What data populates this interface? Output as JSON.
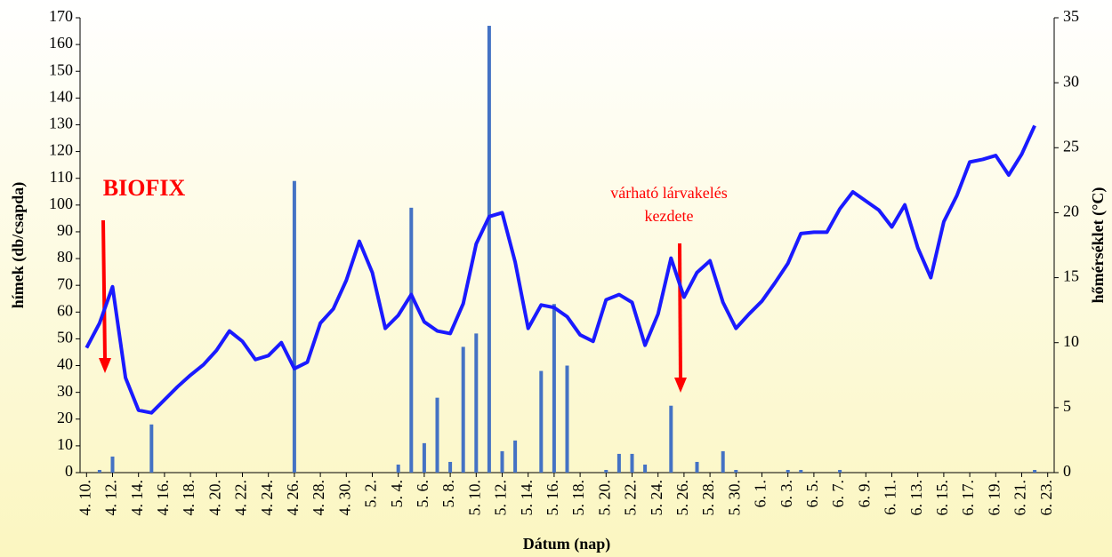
{
  "chart_data": {
    "type": "bar_line",
    "xlabel": "Dátum (nap)",
    "ylabel": "hímek (db/csapda)",
    "y2label": "hőmérséklet (°C)",
    "categories": [
      "4. 10.",
      null,
      "4. 12.",
      null,
      "4. 14.",
      null,
      "4. 16.",
      null,
      "4. 18.",
      null,
      "4. 20.",
      null,
      "4. 22.",
      null,
      "4. 24.",
      null,
      "4. 26.",
      null,
      "4. 28.",
      null,
      "4. 30.",
      null,
      "5. 2.",
      null,
      "5. 4.",
      null,
      "5. 6.",
      null,
      "5. 8.",
      null,
      "5. 10.",
      null,
      "5. 12.",
      null,
      "5. 14.",
      null,
      "5. 16.",
      null,
      "5. 18.",
      null,
      "5. 20.",
      null,
      "5. 22.",
      null,
      "5. 24.",
      null,
      "5. 26.",
      null,
      "5. 28.",
      null,
      "5. 30.",
      null,
      "6. 1.",
      null,
      "6. 3.",
      null,
      "6. 5.",
      null,
      "6. 7.",
      null,
      "6. 9.",
      null,
      "6. 11.",
      null,
      "6. 13.",
      null,
      "6. 15.",
      null,
      "6. 17.",
      null,
      "6. 19.",
      null,
      "6. 21.",
      null,
      "6. 23."
    ],
    "series": [
      {
        "name": "hímek",
        "color": "#4472c4",
        "kind": "bar",
        "values": [
          0,
          1,
          6,
          0,
          0,
          18,
          0,
          0,
          0,
          0,
          0,
          0,
          0,
          0,
          0,
          0,
          109,
          0,
          0,
          0,
          0,
          0,
          0,
          0,
          3,
          99,
          11,
          28,
          4,
          47,
          52,
          167,
          8,
          12,
          0,
          38,
          63,
          40,
          0,
          0,
          1,
          7,
          7,
          3,
          0,
          25,
          0,
          4,
          0,
          8,
          1,
          0,
          0,
          0,
          1,
          1,
          0,
          0,
          1,
          0,
          0,
          0,
          0,
          0,
          0,
          0,
          0,
          0,
          0,
          0,
          0,
          0,
          0,
          1,
          0
        ]
      },
      {
        "name": "hőmérséklet",
        "color": "#1a1aff",
        "kind": "line",
        "axis": "y2",
        "values": [
          9.6,
          11.5,
          14.3,
          7.3,
          4.8,
          4.6,
          5.6,
          6.6,
          7.5,
          8.3,
          9.4,
          10.9,
          10.1,
          8.7,
          9.0,
          10.0,
          8.0,
          8.5,
          11.5,
          12.6,
          14.8,
          17.8,
          15.4,
          11.1,
          12.1,
          13.7,
          11.6,
          10.9,
          10.7,
          13.0,
          17.6,
          19.7,
          20.0,
          16.2,
          11.1,
          12.9,
          12.7,
          12.0,
          10.6,
          10.1,
          13.3,
          13.7,
          13.1,
          9.8,
          12.2,
          16.5,
          13.5,
          15.4,
          16.3,
          13.1,
          11.1,
          12.2,
          13.2,
          14.6,
          16.1,
          18.4,
          18.5,
          18.5,
          20.3,
          21.6,
          20.9,
          20.2,
          18.9,
          20.6,
          17.3,
          15.0,
          19.3,
          21.3,
          23.9,
          24.1,
          24.4,
          22.9,
          24.5,
          26.7,
          null
        ]
      }
    ],
    "ylim": [
      0,
      170
    ],
    "yticks": [
      0,
      10,
      20,
      30,
      40,
      50,
      60,
      70,
      80,
      90,
      100,
      110,
      120,
      130,
      140,
      150,
      160,
      170
    ],
    "y2lim": [
      0,
      35
    ],
    "y2ticks": [
      0,
      5,
      10,
      15,
      20,
      25,
      30,
      35
    ],
    "annotations": [
      "BIOFIX",
      "várható lárvakelés",
      "kezdete"
    ]
  }
}
